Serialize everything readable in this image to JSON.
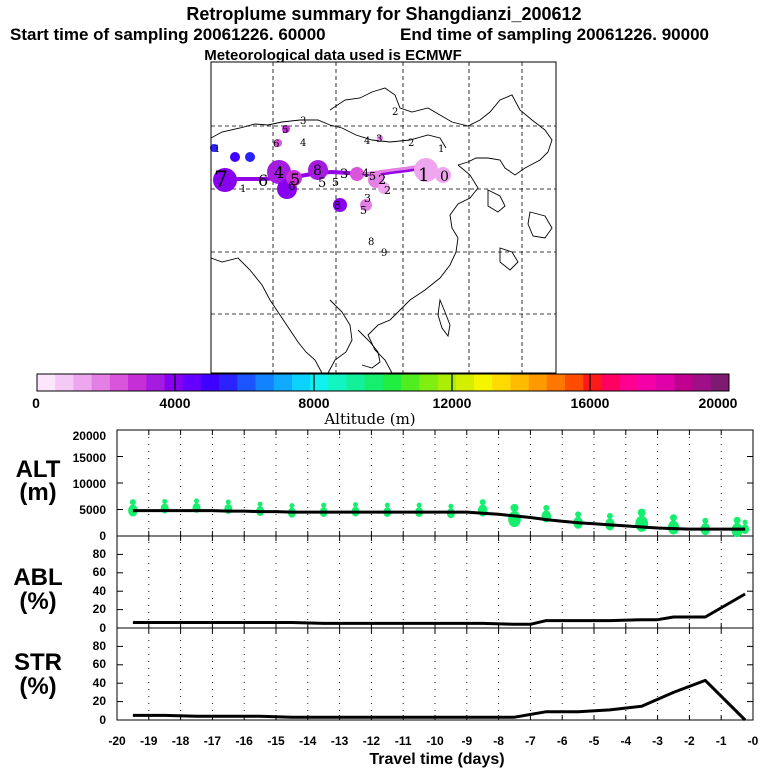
{
  "header": {
    "title": "Retroplume summary for Shangdianzi_200612",
    "start_label": "Start time of sampling 20061226. 60000",
    "end_label": "End time of sampling 20061226. 90000",
    "met_label": "Meteorological data used is ECMWF"
  },
  "colorbar": {
    "ticks": [
      "0",
      "4000",
      "8000",
      "12000",
      "16000",
      "20000"
    ],
    "label": "Altitude (m)",
    "colors": [
      "#fbe6fb",
      "#f5c9f5",
      "#eea6ef",
      "#e47fe6",
      "#d955dc",
      "#c62fd5",
      "#a51ce0",
      "#8800f0",
      "#6500ff",
      "#4000ff",
      "#2a22ff",
      "#1a55ff",
      "#1282ff",
      "#10aaff",
      "#0cd2ff",
      "#10f2f0",
      "#12f5c0",
      "#14f09a",
      "#16ee6e",
      "#20ee40",
      "#50ee20",
      "#80ee10",
      "#aaee08",
      "#d4ee00",
      "#f5f500",
      "#ffda00",
      "#ffbb00",
      "#ff9900",
      "#ff7700",
      "#ff4c00",
      "#ff1a1a",
      "#ff0060",
      "#ff0090",
      "#f500a8",
      "#de00a8",
      "#c0008f",
      "#9e0f88",
      "#7f1a72"
    ]
  },
  "map": {
    "labels": [
      "7",
      "6",
      "4",
      "5",
      "6",
      "8",
      "5",
      "3",
      "5",
      "2",
      "1",
      "0",
      "3",
      "4",
      "4",
      "3",
      "2",
      "1",
      "8",
      "5",
      "3",
      "1",
      "4",
      "5",
      "2",
      "5",
      "1",
      "6",
      "8",
      "9",
      "2"
    ]
  },
  "chart_data": [
    {
      "type": "line",
      "panel": "ALT",
      "ylabel_line1": "ALT",
      "ylabel_line2": "(m)",
      "y_tick_labels": [
        "0",
        "5000",
        "10000",
        "15000",
        "20000"
      ],
      "ylim": [
        0,
        20000
      ],
      "xlim": [
        -20,
        0
      ],
      "x": [
        -19.5,
        -19,
        -18.5,
        -18,
        -17.5,
        -17,
        -16.5,
        -16,
        -15.5,
        -15,
        -14.5,
        -14,
        -13.5,
        -13,
        -12.5,
        -12,
        -11.5,
        -11,
        -10.5,
        -10,
        -9.5,
        -9,
        -8.5,
        -8,
        -7.5,
        -7,
        -6.5,
        -6,
        -5.5,
        -5,
        -4.5,
        -4,
        -3.5,
        -3,
        -2.5,
        -2,
        -1.5,
        -1,
        -0.5,
        -0.25
      ],
      "values": [
        4800,
        4800,
        4800,
        4800,
        4800,
        4800,
        4700,
        4700,
        4600,
        4600,
        4500,
        4500,
        4500,
        4500,
        4500,
        4500,
        4500,
        4500,
        4500,
        4500,
        4500,
        4500,
        4300,
        4100,
        3800,
        3500,
        3100,
        2800,
        2500,
        2300,
        2100,
        1900,
        1700,
        1500,
        1400,
        1300,
        1300,
        1300,
        1300,
        1300
      ],
      "plume_points": [
        {
          "x": -19.5,
          "y": 4800,
          "size": 6
        },
        {
          "x": -18.5,
          "y": 5200,
          "size": 5
        },
        {
          "x": -17.5,
          "y": 5300,
          "size": 5
        },
        {
          "x": -16.5,
          "y": 5100,
          "size": 5
        },
        {
          "x": -15.5,
          "y": 4700,
          "size": 5
        },
        {
          "x": -14.5,
          "y": 4400,
          "size": 5
        },
        {
          "x": -13.5,
          "y": 4500,
          "size": 5
        },
        {
          "x": -12.5,
          "y": 4600,
          "size": 5
        },
        {
          "x": -11.5,
          "y": 4500,
          "size": 5
        },
        {
          "x": -10.5,
          "y": 4500,
          "size": 5
        },
        {
          "x": -9.5,
          "y": 4300,
          "size": 5
        },
        {
          "x": -8.5,
          "y": 4800,
          "size": 6
        },
        {
          "x": -7.5,
          "y": 3200,
          "size": 8
        },
        {
          "x": -6.5,
          "y": 3700,
          "size": 6
        },
        {
          "x": -5.5,
          "y": 2500,
          "size": 6
        },
        {
          "x": -4.5,
          "y": 2200,
          "size": 6
        },
        {
          "x": -3.5,
          "y": 2300,
          "size": 8
        },
        {
          "x": -2.5,
          "y": 1600,
          "size": 7
        },
        {
          "x": -1.5,
          "y": 1300,
          "size": 6
        },
        {
          "x": -0.5,
          "y": 1100,
          "size": 7
        },
        {
          "x": -0.25,
          "y": 1300,
          "size": 5
        }
      ],
      "plume_color": "#16ee6e"
    },
    {
      "type": "line",
      "panel": "ABL",
      "ylabel_line1": "ABL",
      "ylabel_line2": "(%)",
      "y_tick_labels": [
        "0",
        "20",
        "40",
        "60",
        "80"
      ],
      "ylim": [
        0,
        100
      ],
      "xlim": [
        -20,
        0
      ],
      "x": [
        -19.5,
        -18.5,
        -17.5,
        -16.5,
        -15.5,
        -14.5,
        -13.5,
        -12.5,
        -11.5,
        -10.5,
        -9.5,
        -8.5,
        -7.5,
        -7,
        -6.5,
        -5.5,
        -4.5,
        -3.5,
        -3,
        -2.5,
        -1.5,
        -0.25
      ],
      "values": [
        6,
        6,
        6,
        6,
        6,
        6,
        5,
        5,
        5,
        5,
        5,
        5,
        4,
        4,
        8,
        8,
        8,
        9,
        9,
        12,
        12,
        37
      ]
    },
    {
      "type": "line",
      "panel": "STR",
      "ylabel_line1": "STR",
      "ylabel_line2": "(%)",
      "y_tick_labels": [
        "0",
        "20",
        "40",
        "60",
        "80"
      ],
      "ylim": [
        0,
        100
      ],
      "xlim": [
        -20,
        0
      ],
      "xlabel": "Travel time (days)",
      "x_tick_labels": [
        "-20",
        "-19",
        "-18",
        "-17",
        "-16",
        "-15",
        "-14",
        "-13",
        "-12",
        "-11",
        "-10",
        "-9",
        "-8",
        "-7",
        "-6",
        "-5",
        "-4",
        "-3",
        "-2",
        "-1",
        "-0"
      ],
      "x": [
        -19.5,
        -18.5,
        -17.5,
        -16.5,
        -15.5,
        -14.5,
        -13.5,
        -12.5,
        -11.5,
        -10.5,
        -9.5,
        -8.5,
        -7.5,
        -6.5,
        -5.5,
        -4.5,
        -3.5,
        -2.5,
        -1.5,
        -0.25
      ],
      "values": [
        5,
        5,
        4,
        4,
        4,
        3,
        3,
        3,
        3,
        3,
        3,
        3,
        3,
        9,
        9,
        11,
        15,
        30,
        43,
        0
      ]
    }
  ]
}
